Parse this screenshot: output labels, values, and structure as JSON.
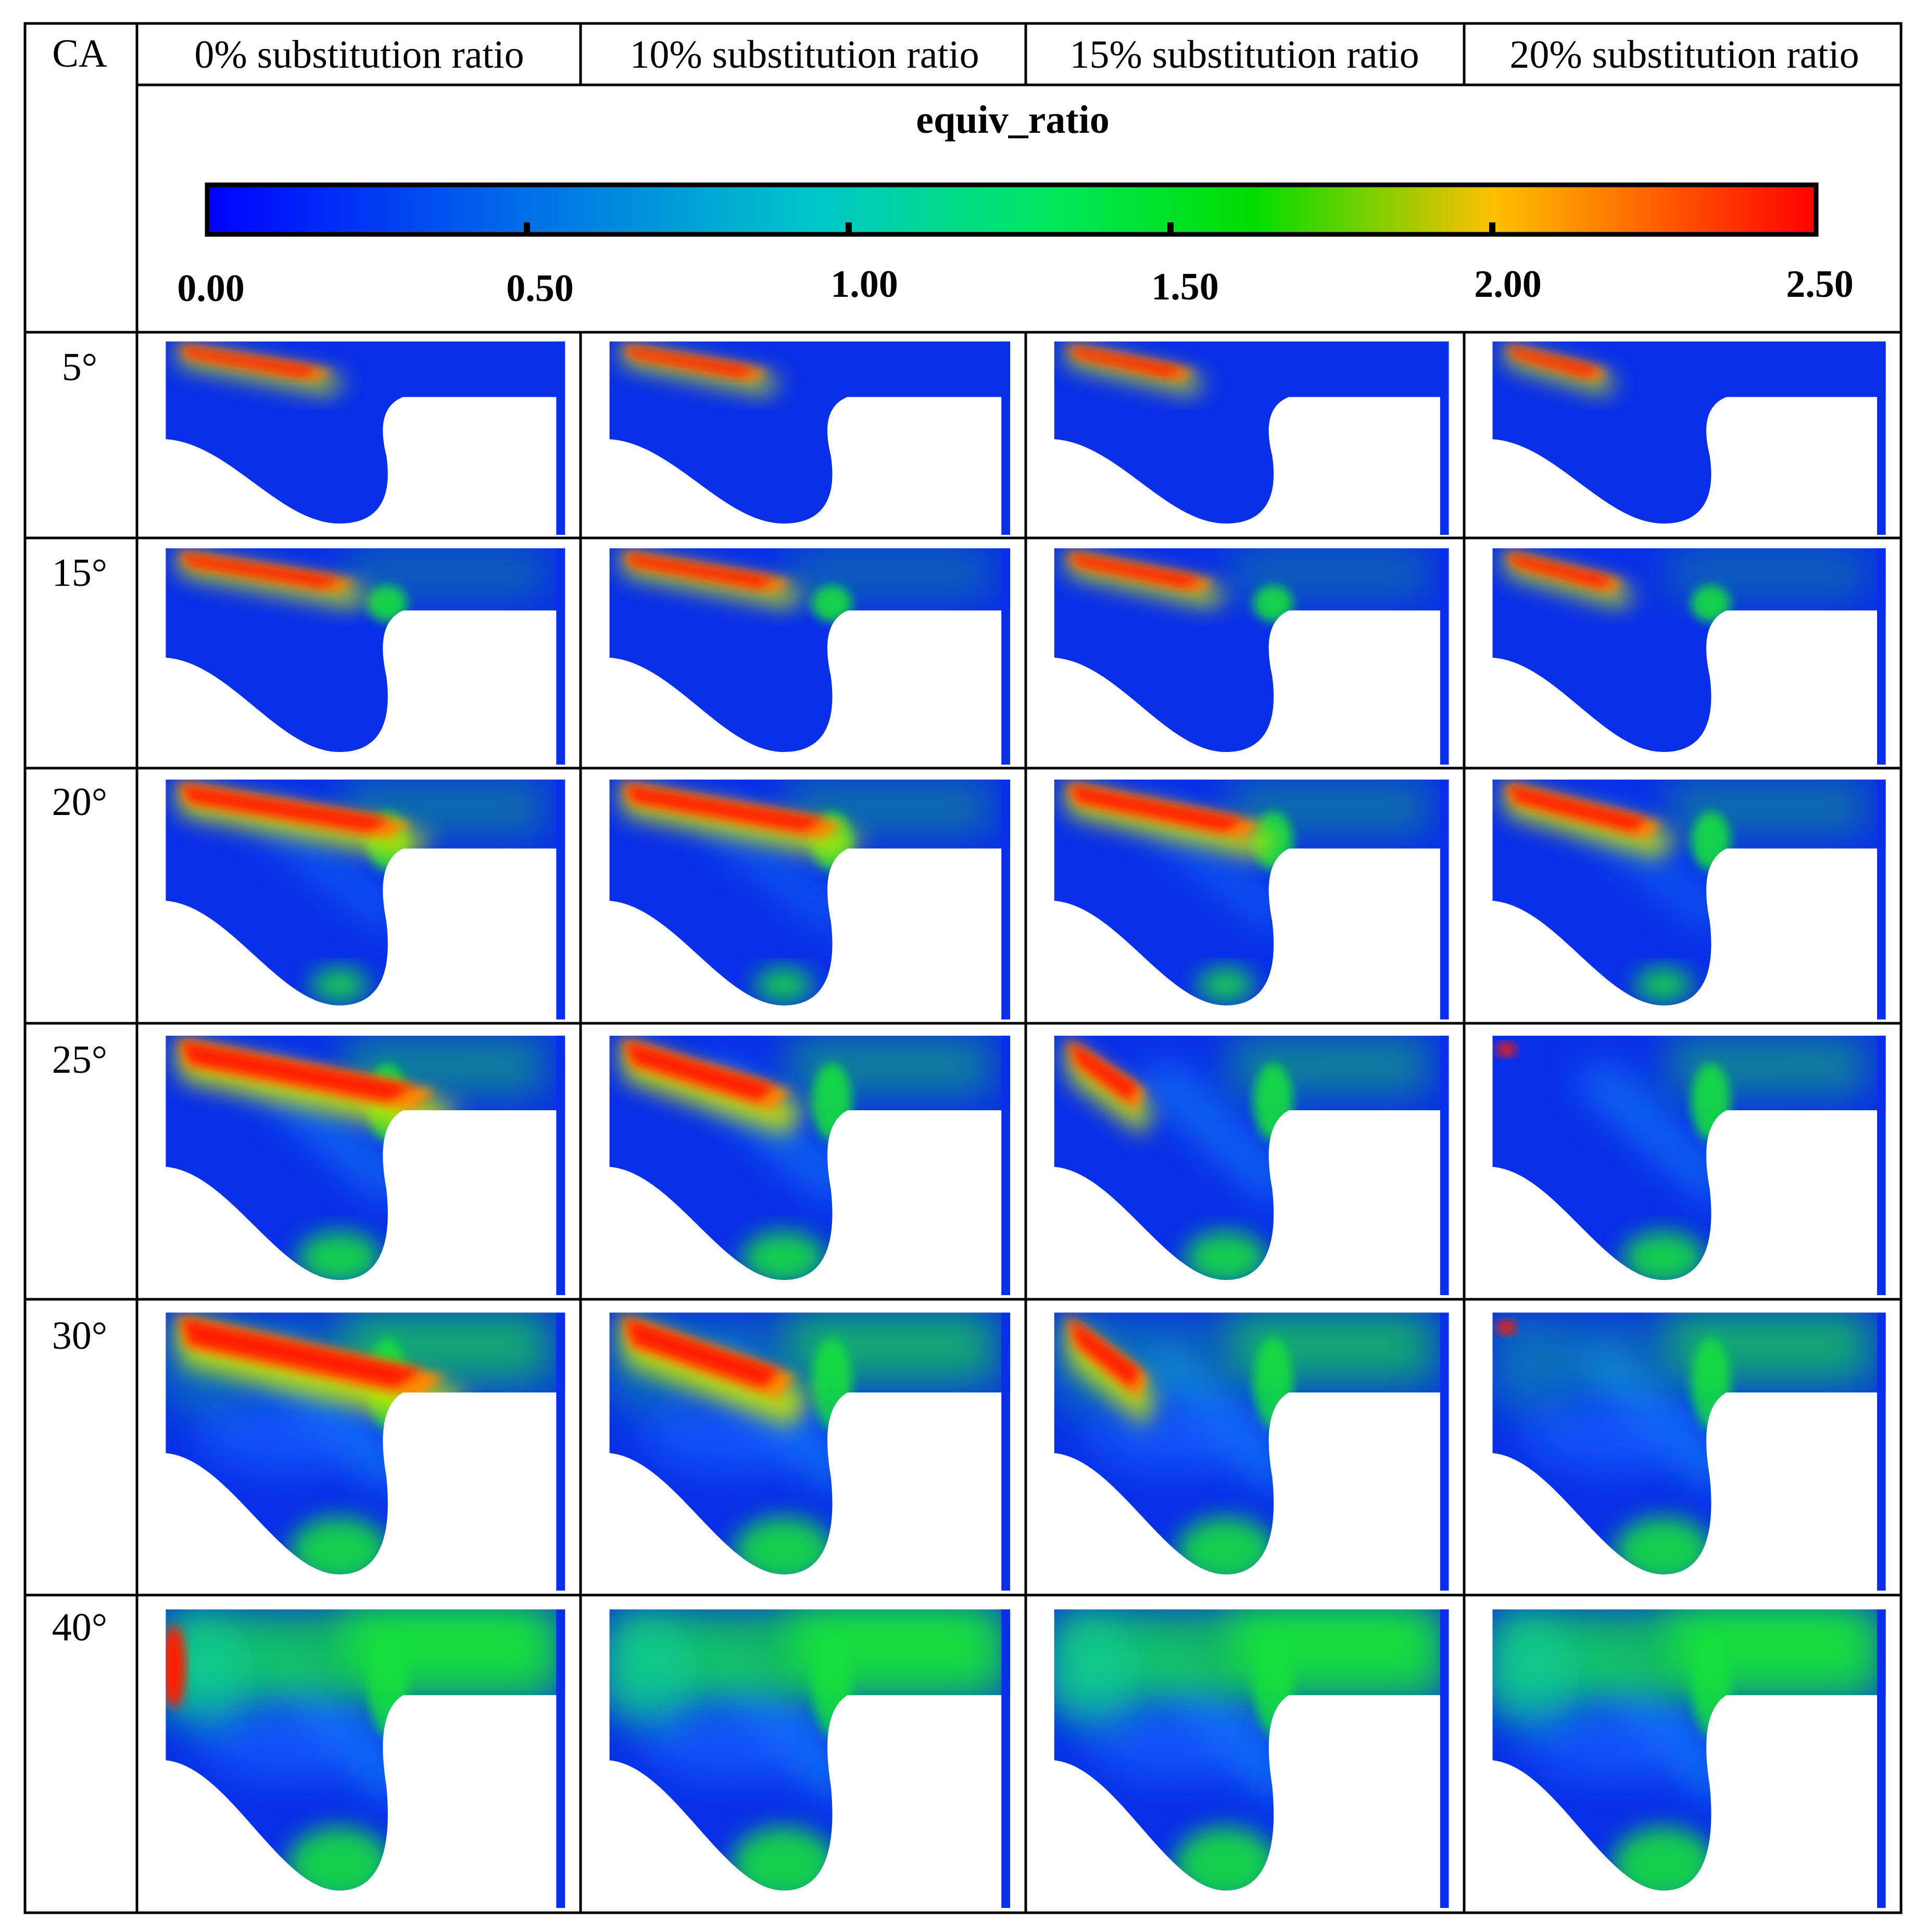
{
  "table": {
    "corner_label": "CA",
    "columns": [
      "0% substitution ratio",
      "10% substitution ratio",
      "15% substitution ratio",
      "20% substitution ratio"
    ],
    "rows": [
      "5°",
      "15°",
      "20°",
      "25°",
      "30°",
      "40°"
    ]
  },
  "colorbar": {
    "title": "equiv_ratio",
    "min": 0,
    "max": 2.5,
    "ticks": [
      "0.00",
      "0.50",
      "1.00",
      "1.50",
      "2.00",
      "2.50"
    ],
    "colormap": [
      "#0000ff",
      "#0070e8",
      "#00c8c8",
      "#00e860",
      "#00dd00",
      "#ffc000",
      "#ff6000",
      "#ff0000"
    ]
  },
  "colors": {
    "background_blue": "#0a2fe8",
    "rich_red": "#ff1e00",
    "orange": "#ff8a00",
    "yellow_green": "#c8e600",
    "green": "#12e03c",
    "cyan_green": "#10d8a0",
    "cyan": "#18a8ff",
    "light_blue": "#1864ff"
  },
  "stages": [
    {
      "red_length": 0.42,
      "red_width": 0.3,
      "green_extent": 0.0,
      "lean_mix": 0.0
    },
    {
      "red_length": 0.48,
      "red_width": 0.3,
      "green_extent": 0.2,
      "lean_mix": 0.0
    },
    {
      "red_length": 0.62,
      "red_width": 0.36,
      "green_extent": 0.55,
      "lean_mix": 0.0
    },
    {
      "red_length": 0.68,
      "red_width": 0.42,
      "green_extent": 0.8,
      "lean_mix": 0.1
    },
    {
      "red_length": 0.7,
      "red_width": 0.45,
      "green_extent": 0.95,
      "lean_mix": 0.3
    },
    {
      "red_length": 0.0,
      "red_width": 0.0,
      "green_extent": 1.0,
      "lean_mix": 1.0
    }
  ],
  "red_scale": [
    1.0,
    0.95,
    0.85,
    0.7
  ]
}
